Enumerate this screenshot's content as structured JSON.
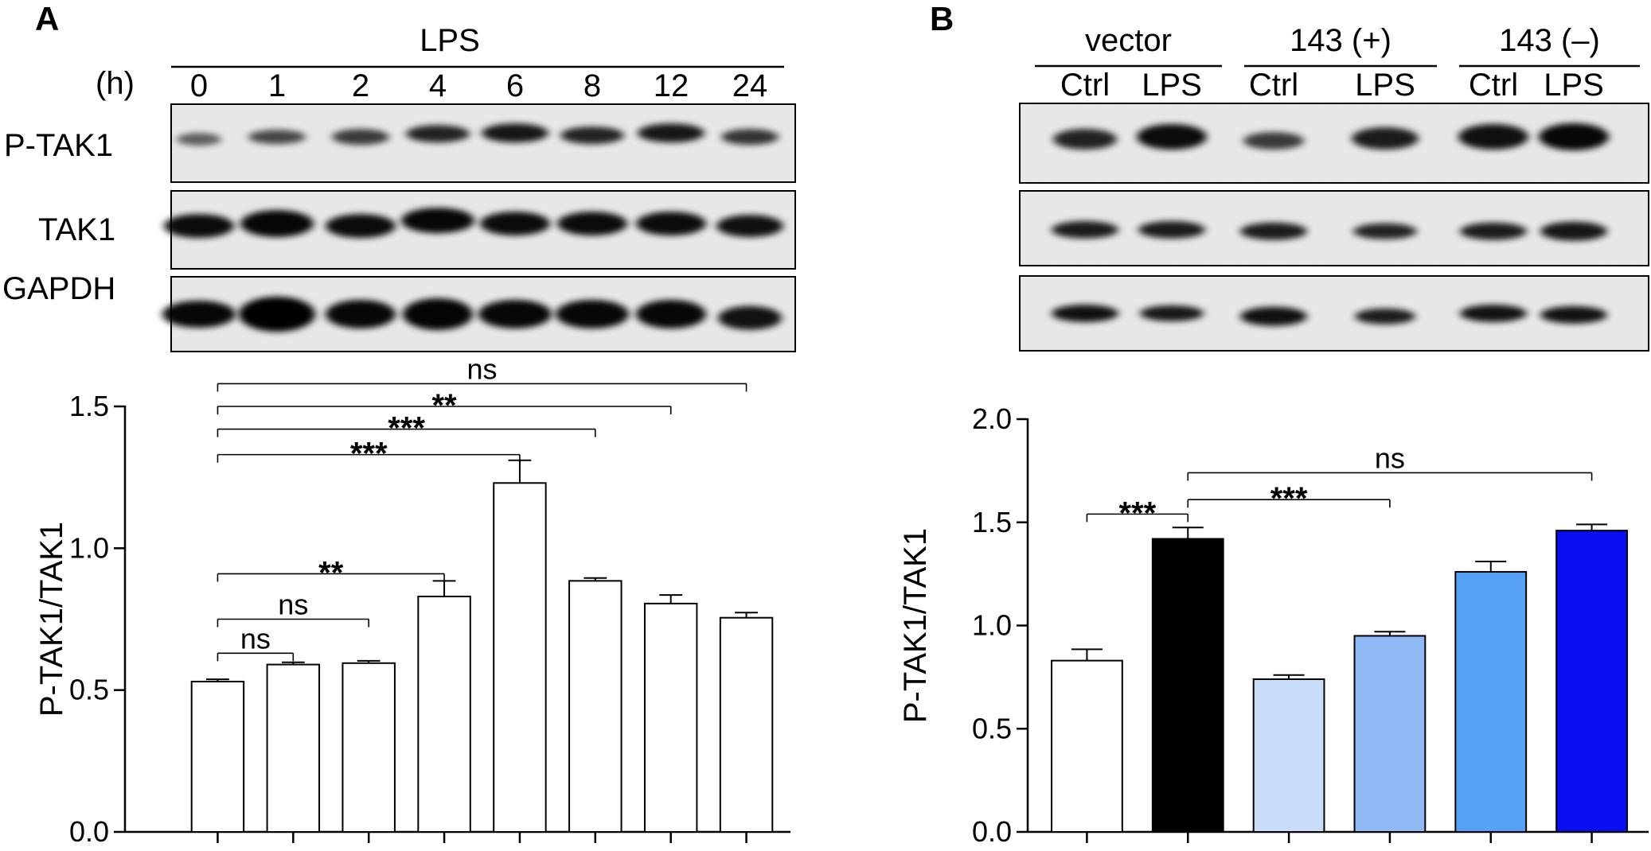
{
  "panels": {
    "A": {
      "letter": "A",
      "lps_label": "LPS",
      "unit_label": "(h)",
      "times": [
        "0",
        "1",
        "2",
        "4",
        "6",
        "8",
        "12",
        "24"
      ],
      "blot_labels": [
        "P-TAK1",
        "TAK1",
        "GAPDH"
      ]
    },
    "B": {
      "letter": "B",
      "groups": [
        "vector",
        "143 (+)",
        "143 (–)"
      ],
      "lanes": [
        "Ctrl",
        "LPS",
        "Ctrl",
        "LPS",
        "Ctrl",
        "LPS"
      ]
    }
  },
  "chart_data": [
    {
      "type": "bar",
      "panel": "A",
      "categories": [
        "0",
        "1",
        "2",
        "4",
        "6",
        "8",
        "12",
        "24"
      ],
      "values": [
        0.53,
        0.59,
        0.595,
        0.83,
        1.23,
        0.885,
        0.805,
        0.755
      ],
      "errors": [
        0.008,
        0.008,
        0.008,
        0.055,
        0.08,
        0.01,
        0.03,
        0.018
      ],
      "bar_colors": [
        "#ffffff",
        "#ffffff",
        "#ffffff",
        "#ffffff",
        "#ffffff",
        "#ffffff",
        "#ffffff",
        "#ffffff"
      ],
      "ylabel": "P-TAK1/TAK1",
      "ylim": [
        0,
        1.5
      ],
      "yticks": [
        "0.0",
        "0.5",
        "1.0",
        "1.5"
      ],
      "comparisons": [
        {
          "from": 0,
          "to": 1,
          "label": "ns",
          "y": 0.63
        },
        {
          "from": 0,
          "to": 2,
          "label": "ns",
          "y": 0.75
        },
        {
          "from": 0,
          "to": 3,
          "label": "**",
          "y": 0.91
        },
        {
          "from": 0,
          "to": 4,
          "label": "***",
          "y": 1.33
        },
        {
          "from": 0,
          "to": 5,
          "label": "***",
          "y": 1.42
        },
        {
          "from": 0,
          "to": 6,
          "label": "**",
          "y": 1.5
        },
        {
          "from": 0,
          "to": 7,
          "label": "ns",
          "y": 1.58
        }
      ]
    },
    {
      "type": "bar",
      "panel": "B",
      "categories": [
        "vector Ctrl",
        "vector LPS",
        "143 (+) Ctrl",
        "143 (+) LPS",
        "143 (–) Ctrl",
        "143 (–) LPS"
      ],
      "values": [
        0.83,
        1.42,
        0.74,
        0.95,
        1.26,
        1.46
      ],
      "errors": [
        0.055,
        0.055,
        0.02,
        0.02,
        0.05,
        0.03
      ],
      "bar_colors": [
        "#ffffff",
        "#000000",
        "#c9ddf8",
        "#8fbaf5",
        "#55a2f7",
        "#0a0ef0"
      ],
      "ylabel": "P-TAK1/TAK1",
      "ylim": [
        0,
        2.0
      ],
      "yticks": [
        "0.0",
        "0.5",
        "1.0",
        "1.5",
        "2.0"
      ],
      "comparisons": [
        {
          "from": 0,
          "to": 1,
          "label": "***",
          "y": 1.54
        },
        {
          "from": 1,
          "to": 3,
          "label": "***",
          "y": 1.61
        },
        {
          "from": 1,
          "to": 5,
          "label": "ns",
          "y": 1.74
        }
      ]
    }
  ]
}
